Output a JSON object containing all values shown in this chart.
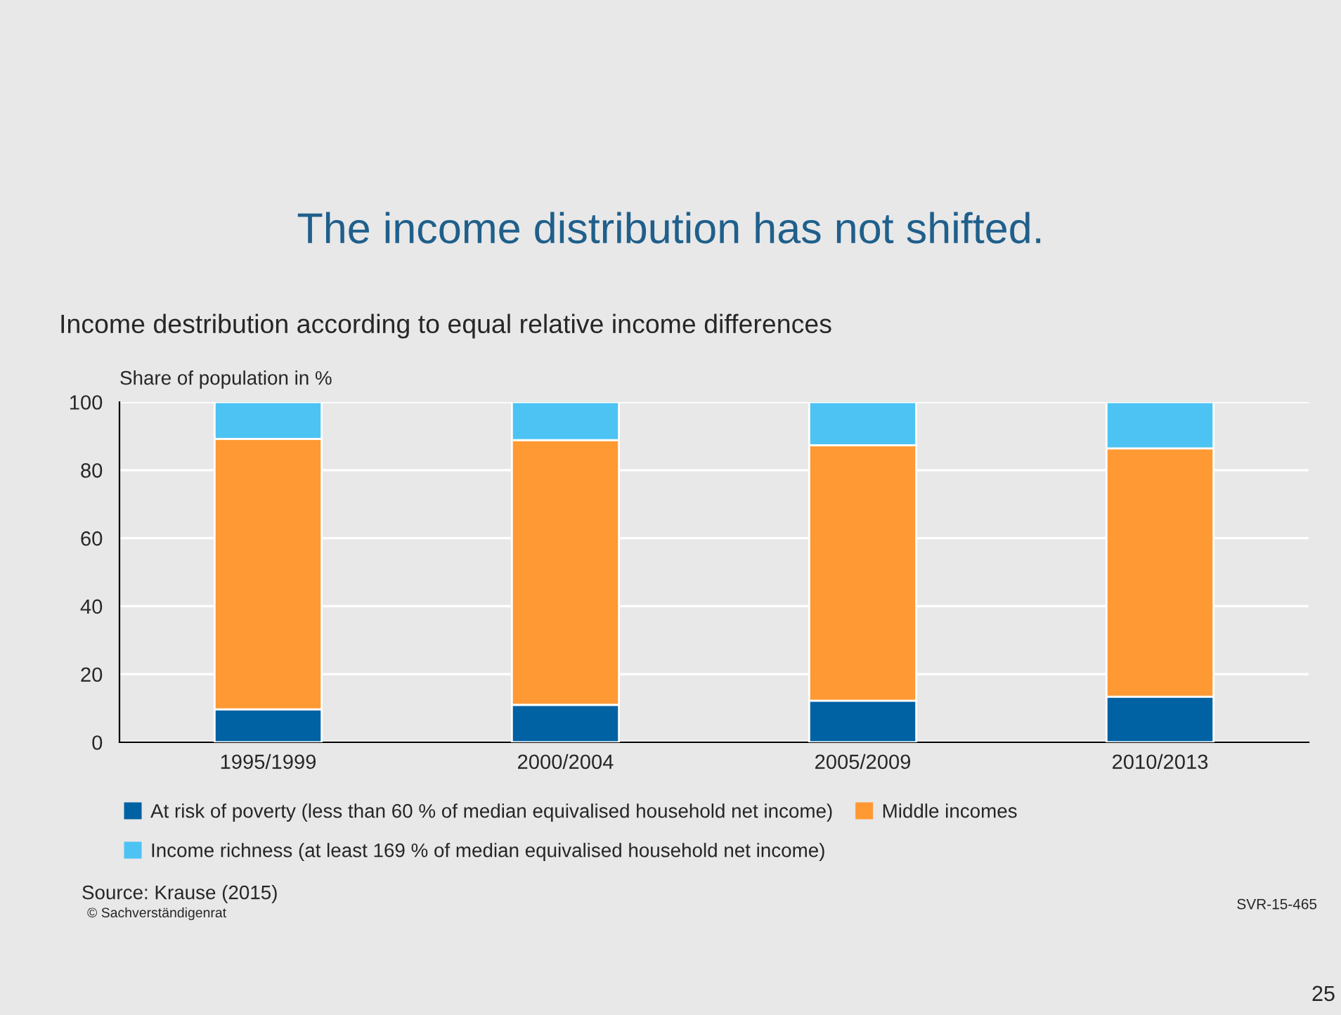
{
  "chart_data": {
    "type": "bar",
    "title": "The income distribution has not shifted.",
    "subtitle": "Income destribution according to equal relative income differences",
    "ylabel": "Share of population in %",
    "categories": [
      "1995/1999",
      "2000/2004",
      "2005/2009",
      "2010/2013"
    ],
    "stacked": true,
    "series": [
      {
        "name": "At risk of poverty (less than 60 % of median equivalised household net income)",
        "color": "#0061a3",
        "values": [
          9.7,
          11.0,
          12.2,
          13.4
        ]
      },
      {
        "name": "Middle incomes",
        "color": "#ff9933",
        "values": [
          79.5,
          77.8,
          75.1,
          73.0
        ]
      },
      {
        "name": "Income richness (at least 169 % of median equivalised household net income)",
        "color": "#4dc3f3",
        "values": [
          10.8,
          11.2,
          12.7,
          13.6
        ]
      }
    ],
    "ylim": [
      0,
      100
    ],
    "yticks": [
      0,
      20,
      40,
      60,
      80,
      100
    ],
    "grid": "y",
    "legend": "bottom",
    "annotations": [
      "Source: Krause (2015)",
      "© Sachverständigenrat",
      "SVR-15-465",
      "25"
    ]
  }
}
